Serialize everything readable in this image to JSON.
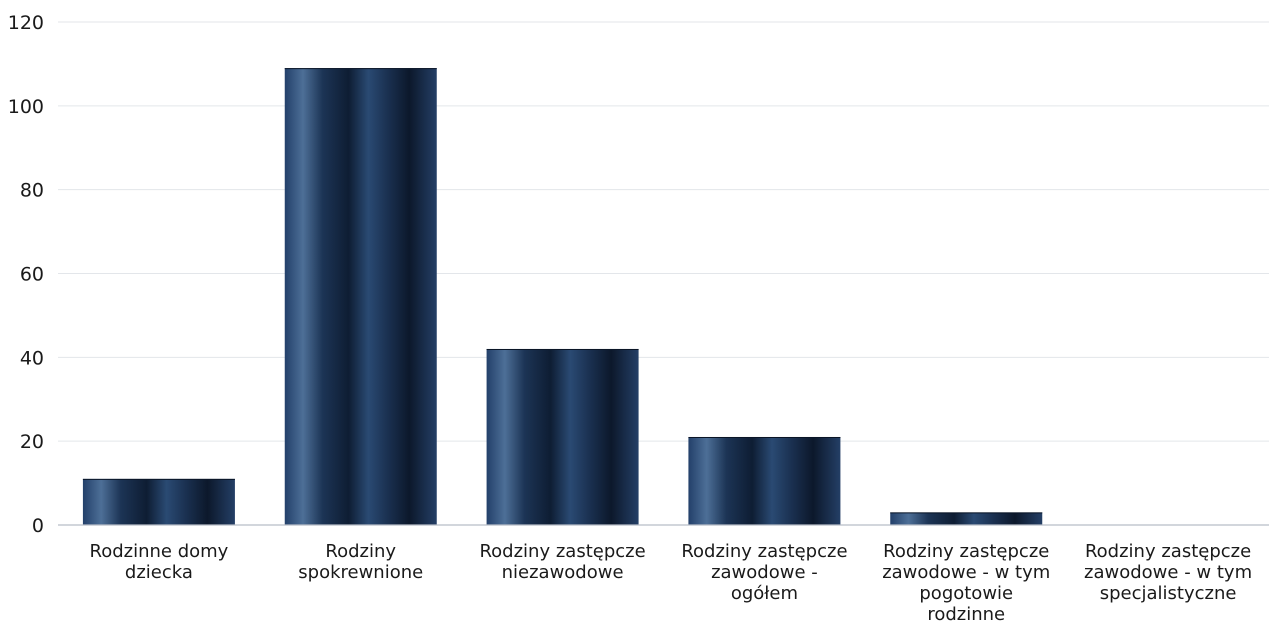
{
  "chart_data": {
    "type": "bar",
    "categories": [
      [
        "Rodzinne domy",
        "dziecka"
      ],
      [
        "Rodziny",
        "spokrewnione"
      ],
      [
        "Rodziny zastępcze",
        "niezawodowe"
      ],
      [
        "Rodziny zastępcze",
        "zawodowe -",
        "ogółem"
      ],
      [
        "Rodziny zastępcze",
        "zawodowe - w tym",
        "pogotowie",
        "rodzinne"
      ],
      [
        "Rodziny zastępcze",
        "zawodowe - w tym",
        "specjalistyczne"
      ]
    ],
    "values": [
      11,
      109,
      42,
      21,
      3,
      0
    ],
    "ylim": [
      0,
      120
    ],
    "yticks": [
      "0",
      "20",
      "40",
      "60",
      "80",
      "100",
      "120"
    ],
    "grid": true,
    "legend": "none",
    "colors": {
      "bar_dark": "#0e1d33",
      "bar_mid": "#1f3a5e",
      "bar_light": "#4d6f97"
    }
  }
}
